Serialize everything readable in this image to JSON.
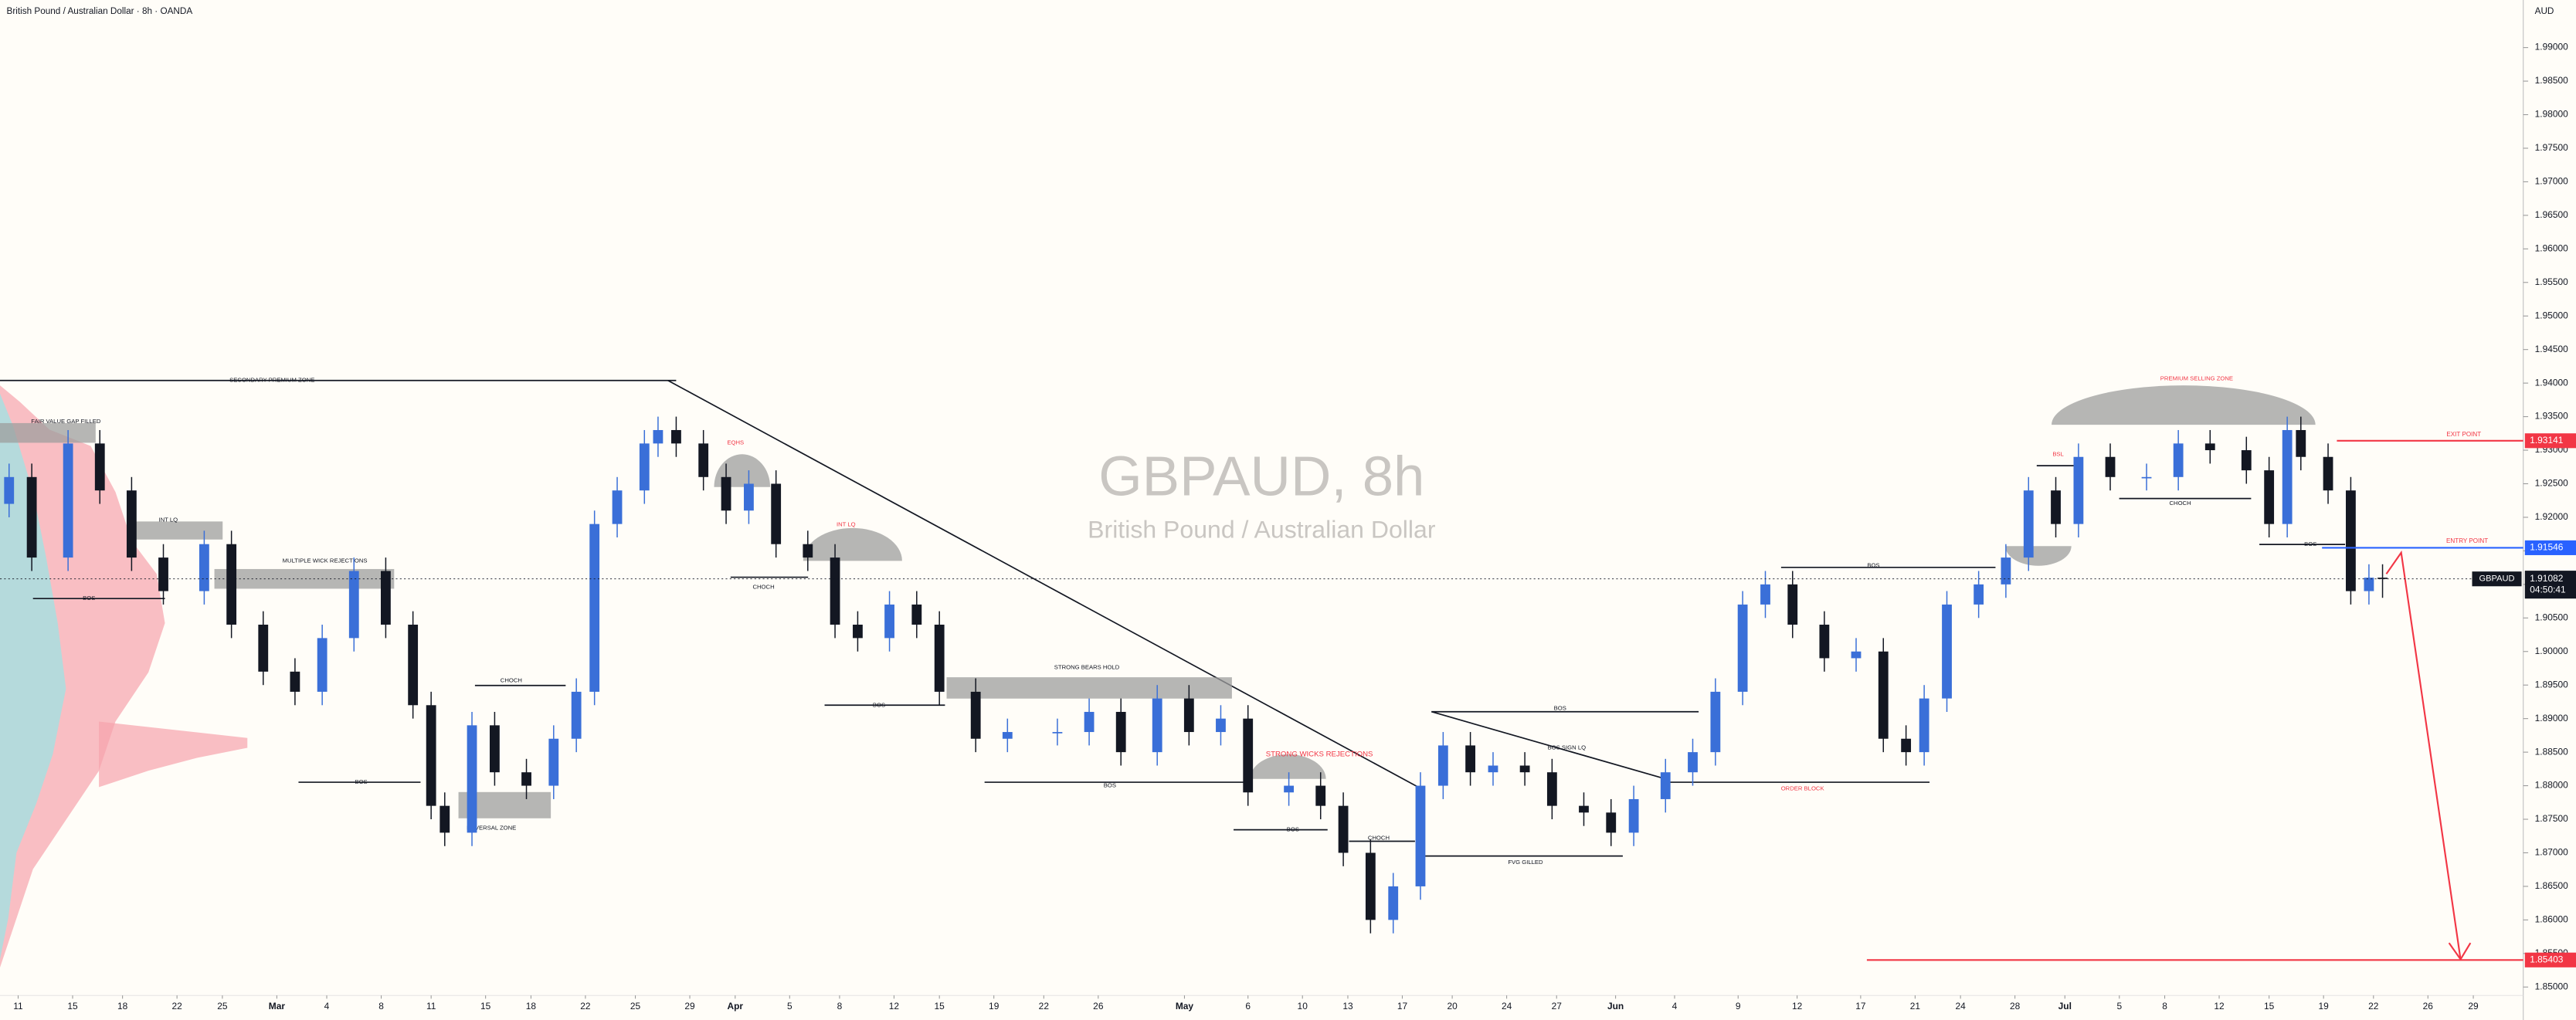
{
  "header": {
    "title": "British Pound / Australian Dollar · 8h · OANDA",
    "currency": "AUD"
  },
  "chart_data": {
    "type": "candlestick",
    "symbol": "GBPAUD",
    "watermark_title": "GBPAUD, 8h",
    "watermark_subtitle": "British Pound / Australian Dollar",
    "x": [
      2,
      7,
      15,
      22,
      29,
      36,
      45,
      51,
      58,
      65,
      71,
      78,
      85,
      91,
      95,
      98,
      104,
      109,
      116,
      122,
      127,
      131,
      136,
      142,
      145,
      149,
      155,
      160,
      165,
      171,
      178,
      184,
      189,
      196,
      202,
      207,
      215,
      222,
      233,
      240,
      247,
      255,
      262,
      269,
      275,
      284,
      291,
      296,
      302,
      307,
      313,
      318,
      324,
      329,
      336,
      342,
      349,
      355,
      360,
      367,
      373,
      378,
      384,
      389,
      395,
      402,
      409,
      415,
      420,
      424,
      429,
      436,
      442,
      447,
      453,
      458,
      465,
      473,
      480,
      487,
      495,
      500,
      504,
      507,
      513,
      518,
      522,
      525
    ],
    "open": [
      1.922,
      1.926,
      1.914,
      1.931,
      1.924,
      1.914,
      1.909,
      1.916,
      1.904,
      1.897,
      1.894,
      1.902,
      1.912,
      1.904,
      1.892,
      1.877,
      1.873,
      1.889,
      1.882,
      1.88,
      1.887,
      1.894,
      1.919,
      1.924,
      1.931,
      1.933,
      1.931,
      1.926,
      1.921,
      1.925,
      1.916,
      1.914,
      1.904,
      1.902,
      1.907,
      1.904,
      1.894,
      1.887,
      1.888,
      1.888,
      1.891,
      1.885,
      1.893,
      1.888,
      1.89,
      1.879,
      1.88,
      1.877,
      1.87,
      1.86,
      1.865,
      1.88,
      1.886,
      1.882,
      1.883,
      1.882,
      1.877,
      1.876,
      1.873,
      1.878,
      1.882,
      1.885,
      1.894,
      1.907,
      1.91,
      1.904,
      1.899,
      1.9,
      1.887,
      1.885,
      1.893,
      1.907,
      1.91,
      1.914,
      1.924,
      1.919,
      1.929,
      1.926,
      1.926,
      1.931,
      1.93,
      1.927,
      1.919,
      1.933,
      1.929,
      1.924,
      1.909,
      1.911
    ],
    "high": [
      1.928,
      1.928,
      1.933,
      1.933,
      1.926,
      1.916,
      1.918,
      1.918,
      1.906,
      1.899,
      1.904,
      1.914,
      1.914,
      1.906,
      1.894,
      1.879,
      1.891,
      1.891,
      1.884,
      1.889,
      1.896,
      1.921,
      1.926,
      1.933,
      1.935,
      1.935,
      1.933,
      1.928,
      1.927,
      1.927,
      1.918,
      1.916,
      1.906,
      1.909,
      1.909,
      1.906,
      1.896,
      1.89,
      1.89,
      1.893,
      1.893,
      1.895,
      1.895,
      1.892,
      1.892,
      1.882,
      1.882,
      1.879,
      1.872,
      1.867,
      1.882,
      1.888,
      1.888,
      1.885,
      1.885,
      1.884,
      1.879,
      1.878,
      1.88,
      1.884,
      1.887,
      1.896,
      1.909,
      1.912,
      1.912,
      1.906,
      1.902,
      1.902,
      1.889,
      1.895,
      1.909,
      1.912,
      1.916,
      1.926,
      1.926,
      1.931,
      1.931,
      1.928,
      1.933,
      1.933,
      1.932,
      1.929,
      1.935,
      1.935,
      1.931,
      1.926,
      1.913,
      1.913
    ],
    "low": [
      1.92,
      1.912,
      1.912,
      1.922,
      1.912,
      1.907,
      1.907,
      1.902,
      1.895,
      1.892,
      1.892,
      1.9,
      1.902,
      1.89,
      1.875,
      1.871,
      1.871,
      1.88,
      1.878,
      1.878,
      1.885,
      1.892,
      1.917,
      1.922,
      1.929,
      1.929,
      1.924,
      1.919,
      1.919,
      1.914,
      1.912,
      1.902,
      1.9,
      1.9,
      1.902,
      1.892,
      1.885,
      1.885,
      1.886,
      1.886,
      1.883,
      1.883,
      1.886,
      1.886,
      1.877,
      1.877,
      1.875,
      1.868,
      1.858,
      1.858,
      1.863,
      1.878,
      1.88,
      1.88,
      1.88,
      1.875,
      1.874,
      1.871,
      1.871,
      1.876,
      1.88,
      1.883,
      1.892,
      1.905,
      1.902,
      1.897,
      1.897,
      1.885,
      1.883,
      1.883,
      1.891,
      1.905,
      1.908,
      1.912,
      1.917,
      1.917,
      1.924,
      1.924,
      1.924,
      1.928,
      1.925,
      1.917,
      1.917,
      1.927,
      1.922,
      1.907,
      1.907,
      1.908
    ],
    "close": [
      1.926,
      1.914,
      1.931,
      1.924,
      1.914,
      1.909,
      1.916,
      1.904,
      1.897,
      1.894,
      1.902,
      1.912,
      1.904,
      1.892,
      1.877,
      1.873,
      1.889,
      1.882,
      1.88,
      1.887,
      1.894,
      1.919,
      1.924,
      1.931,
      1.933,
      1.931,
      1.926,
      1.921,
      1.925,
      1.916,
      1.914,
      1.904,
      1.902,
      1.907,
      1.904,
      1.894,
      1.887,
      1.888,
      1.888,
      1.891,
      1.885,
      1.893,
      1.888,
      1.89,
      1.879,
      1.88,
      1.877,
      1.87,
      1.86,
      1.865,
      1.88,
      1.886,
      1.882,
      1.883,
      1.882,
      1.877,
      1.876,
      1.873,
      1.878,
      1.882,
      1.885,
      1.894,
      1.907,
      1.91,
      1.904,
      1.899,
      1.9,
      1.887,
      1.885,
      1.893,
      1.907,
      1.91,
      1.914,
      1.924,
      1.919,
      1.929,
      1.926,
      1.926,
      1.931,
      1.93,
      1.927,
      1.919,
      1.933,
      1.929,
      1.924,
      1.909,
      1.911,
      1.91082
    ],
    "up_color": "#3a6fd8",
    "down_color": "#131722",
    "xlim": [
      0,
      556
    ],
    "xticks": [
      {
        "value": 4,
        "label": "11"
      },
      {
        "value": 16,
        "label": "15"
      },
      {
        "value": 27,
        "label": "18"
      },
      {
        "value": 39,
        "label": "22"
      },
      {
        "value": 49,
        "label": "25"
      },
      {
        "value": 61,
        "label": "Mar"
      },
      {
        "value": 72,
        "label": "4"
      },
      {
        "value": 84,
        "label": "8"
      },
      {
        "value": 95,
        "label": "11"
      },
      {
        "value": 107,
        "label": "15"
      },
      {
        "value": 117,
        "label": "18"
      },
      {
        "value": 129,
        "label": "22"
      },
      {
        "value": 140,
        "label": "25"
      },
      {
        "value": 152,
        "label": "29"
      },
      {
        "value": 162,
        "label": "Apr"
      },
      {
        "value": 174,
        "label": "5"
      },
      {
        "value": 185,
        "label": "8"
      },
      {
        "value": 197,
        "label": "12"
      },
      {
        "value": 207,
        "label": "15"
      },
      {
        "value": 219,
        "label": "19"
      },
      {
        "value": 230,
        "label": "22"
      },
      {
        "value": 242,
        "label": "26"
      },
      {
        "value": 261,
        "label": "May"
      },
      {
        "value": 275,
        "label": "6"
      },
      {
        "value": 287,
        "label": "10"
      },
      {
        "value": 297,
        "label": "13"
      },
      {
        "value": 309,
        "label": "17"
      },
      {
        "value": 320,
        "label": "20"
      },
      {
        "value": 332,
        "label": "24"
      },
      {
        "value": 343,
        "label": "27"
      },
      {
        "value": 356,
        "label": "Jun"
      },
      {
        "value": 369,
        "label": "4"
      },
      {
        "value": 383,
        "label": "9"
      },
      {
        "value": 396,
        "label": "12"
      },
      {
        "value": 410,
        "label": "17"
      },
      {
        "value": 422,
        "label": "21"
      },
      {
        "value": 432,
        "label": "24"
      },
      {
        "value": 444,
        "label": "28"
      },
      {
        "value": 455,
        "label": "Jul"
      },
      {
        "value": 467,
        "label": "5"
      },
      {
        "value": 477,
        "label": "8"
      },
      {
        "value": 489,
        "label": "12"
      },
      {
        "value": 500,
        "label": "15"
      },
      {
        "value": 512,
        "label": "19"
      },
      {
        "value": 523,
        "label": "22"
      },
      {
        "value": 535,
        "label": "26"
      },
      {
        "value": 545,
        "label": "29"
      }
    ],
    "ylim": [
      1.84875,
      1.99709
    ],
    "yticks": [
      {
        "value": 1.85,
        "label": "1.85000"
      },
      {
        "value": 1.855,
        "label": "1.85500"
      },
      {
        "value": 1.86,
        "label": "1.86000"
      },
      {
        "value": 1.865,
        "label": "1.86500"
      },
      {
        "value": 1.87,
        "label": "1.87000"
      },
      {
        "value": 1.875,
        "label": "1.87500"
      },
      {
        "value": 1.88,
        "label": "1.88000"
      },
      {
        "value": 1.885,
        "label": "1.88500"
      },
      {
        "value": 1.89,
        "label": "1.89000"
      },
      {
        "value": 1.895,
        "label": "1.89500"
      },
      {
        "value": 1.9,
        "label": "1.90000"
      },
      {
        "value": 1.905,
        "label": "1.90500"
      },
      {
        "value": 1.91,
        "label": "1.91000"
      },
      {
        "value": 1.915,
        "label": "1.91500"
      },
      {
        "value": 1.92,
        "label": "1.92000"
      },
      {
        "value": 1.925,
        "label": "1.92500"
      },
      {
        "value": 1.93,
        "label": "1.93000"
      },
      {
        "value": 1.935,
        "label": "1.93500"
      },
      {
        "value": 1.94,
        "label": "1.94000"
      },
      {
        "value": 1.945,
        "label": "1.94500"
      },
      {
        "value": 1.95,
        "label": "1.95000"
      },
      {
        "value": 1.955,
        "label": "1.95500"
      },
      {
        "value": 1.96,
        "label": "1.96000"
      },
      {
        "value": 1.965,
        "label": "1.96500"
      },
      {
        "value": 1.97,
        "label": "1.97000"
      },
      {
        "value": 1.975,
        "label": "1.97500"
      },
      {
        "value": 1.98,
        "label": "1.98000"
      },
      {
        "value": 1.985,
        "label": "1.98500"
      },
      {
        "value": 1.99,
        "label": "1.99000"
      }
    ],
    "levels": [
      {
        "name": "EXIT POINT",
        "value": 1.93141,
        "color": "#f23645"
      },
      {
        "name": "ENTRY POINT",
        "value": 1.91546,
        "color": "#2962ff"
      },
      {
        "value": 1.85403,
        "color": "#f23645"
      }
    ],
    "last_price": 1.91082,
    "countdown": "04:50:41",
    "annotations": [
      "SECONDARY PREMIUM ZONE",
      "FAIR VALUE GAP FILLED",
      "INT LQ",
      "MULTIPLE WICK REJECTIONS",
      "BOS",
      "EQHS",
      "INT LQ",
      "CHOCH",
      "STRONG BEARS HOLD",
      "BOS",
      "CHOCH",
      "BOS",
      "REVERSAL ZONE",
      "BOS",
      "STRONG WICKS REJECTIONS",
      "BOS",
      "CHOCH",
      "FVG GILLED",
      "BOS",
      "BOS SIGN LQ",
      "ORDER BLOCK",
      "BOS",
      "BSL",
      "PREMIUM SELLING ZONE",
      "CHOCH",
      "BOS"
    ]
  }
}
